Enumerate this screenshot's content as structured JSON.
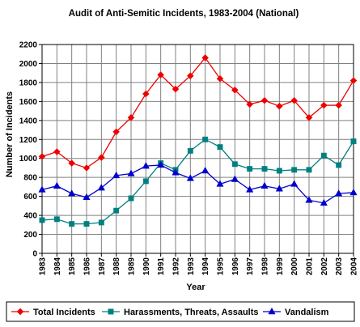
{
  "chart_data": {
    "type": "line",
    "title": "Audit of Anti-Semitic Incidents, 1983-2004 (National)",
    "xlabel": "Year",
    "ylabel": "Number of Incidents",
    "x": [
      "1983",
      "1984",
      "1985",
      "1986",
      "1987",
      "1988",
      "1989",
      "1990",
      "1991",
      "1992",
      "1993",
      "1994",
      "1995",
      "1996",
      "1997",
      "1998",
      "1999",
      "2000",
      "2001",
      "2002",
      "2003",
      "2004"
    ],
    "ylim": [
      0,
      2200
    ],
    "yticks": [
      "0",
      "200",
      "400",
      "600",
      "800",
      "1000",
      "1200",
      "1400",
      "1600",
      "1800",
      "2000",
      "2200"
    ],
    "grid": true,
    "legend_position": "bottom",
    "series": [
      {
        "name": "Total Incidents",
        "color": "#ee0000",
        "marker": "diamond",
        "values": [
          1020,
          1070,
          950,
          900,
          1010,
          1280,
          1430,
          1680,
          1880,
          1730,
          1870,
          2060,
          1840,
          1720,
          1570,
          1610,
          1550,
          1610,
          1430,
          1560,
          1560,
          1820
        ]
      },
      {
        "name": "Harassments, Threats, Assaults",
        "color": "#008080",
        "marker": "square",
        "values": [
          350,
          360,
          310,
          310,
          325,
          450,
          580,
          760,
          950,
          880,
          1080,
          1200,
          1120,
          940,
          890,
          890,
          870,
          880,
          880,
          1030,
          930,
          1180
        ]
      },
      {
        "name": "Vandalism",
        "color": "#0000cc",
        "marker": "triangle",
        "values": [
          670,
          710,
          630,
          590,
          690,
          820,
          840,
          920,
          930,
          850,
          790,
          870,
          730,
          780,
          670,
          710,
          680,
          730,
          560,
          530,
          630,
          640
        ]
      }
    ]
  }
}
